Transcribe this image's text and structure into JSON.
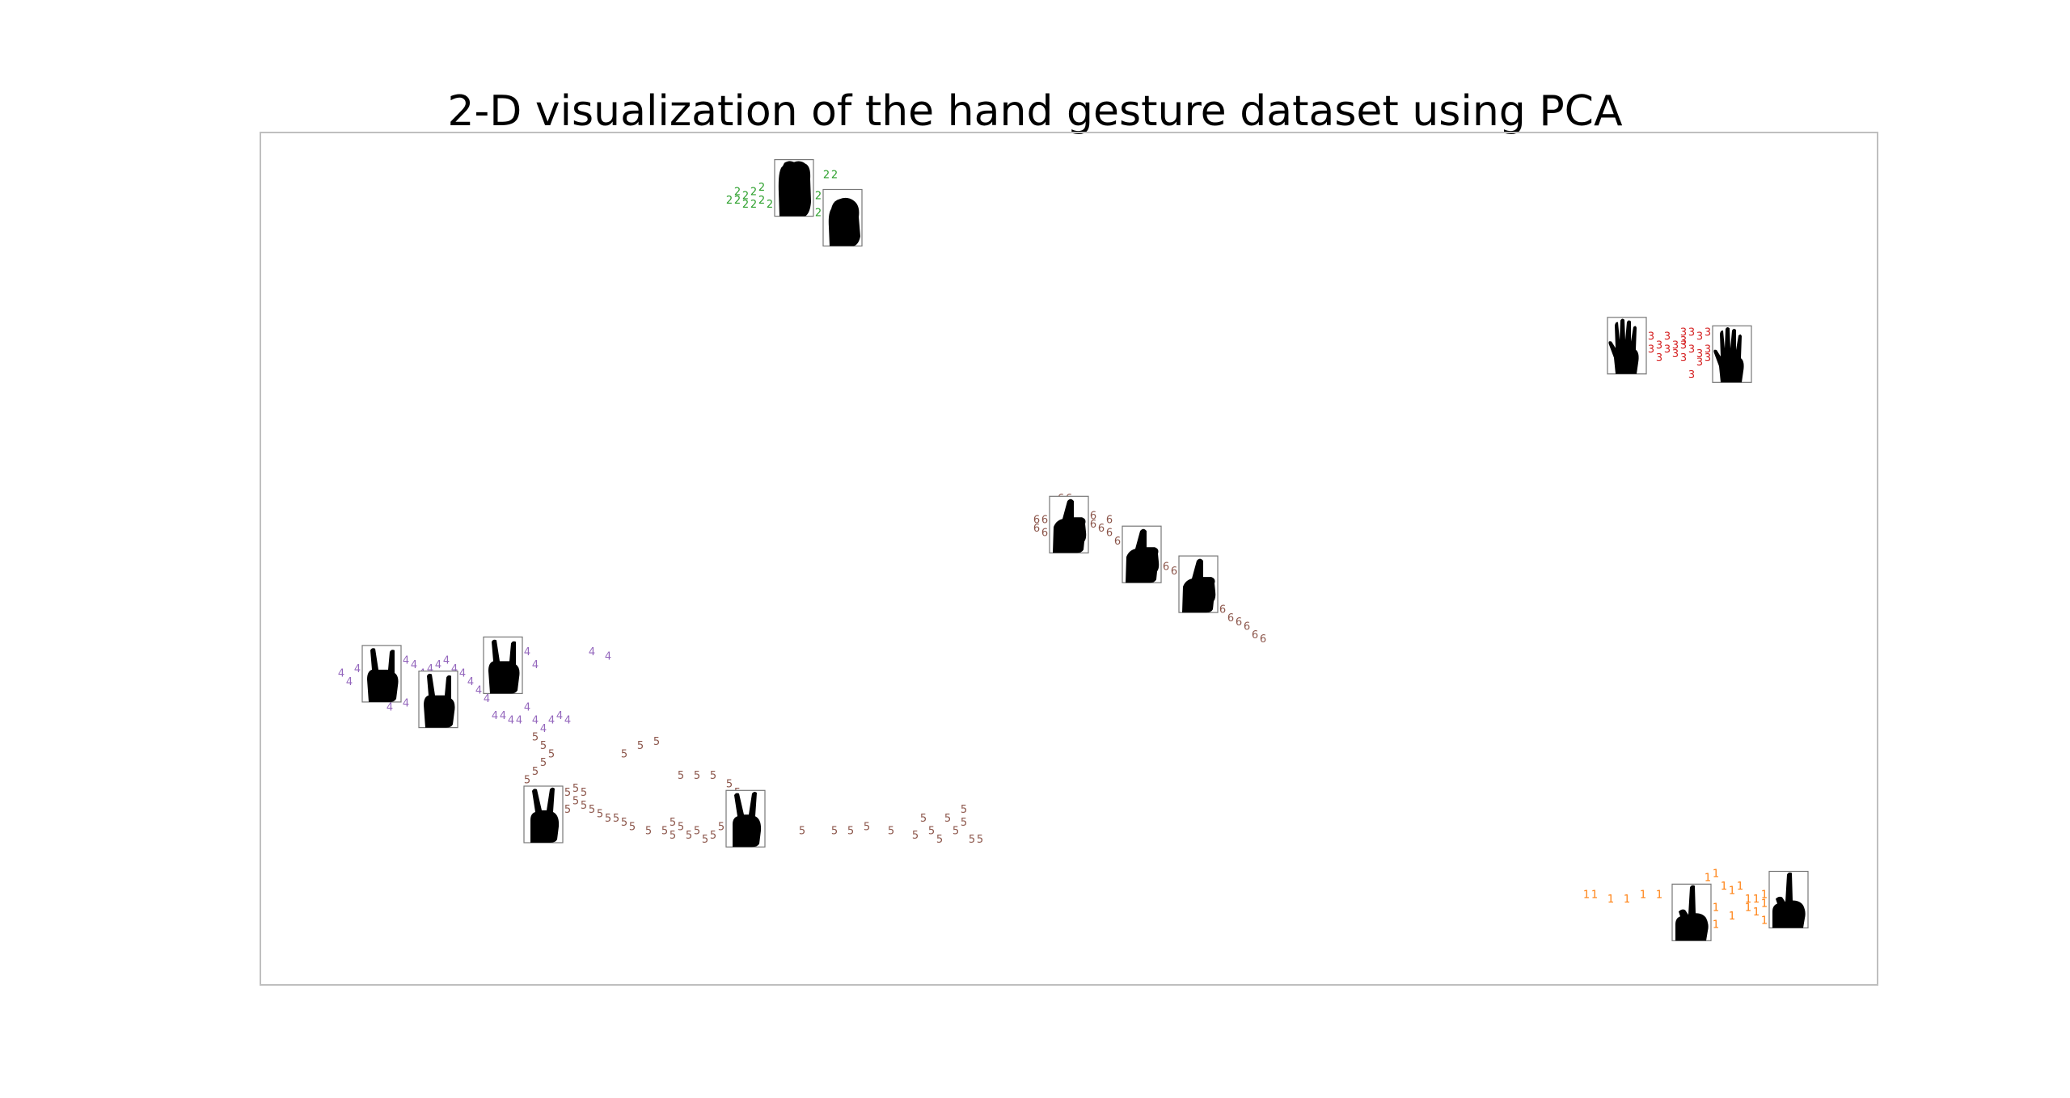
{
  "chart_data": {
    "type": "scatter",
    "title": "2-D visualization of the hand gesture dataset using PCA",
    "xlabel": "",
    "ylabel": "",
    "xlim": [
      -1.0,
      1.0
    ],
    "ylim": [
      -1.0,
      1.0
    ],
    "axes_visible": false,
    "grid": false,
    "legend": "none",
    "marker": "digit text labels (class index)",
    "colors": {
      "1": "#ff7f0e",
      "2": "#2ca02c",
      "3": "#d62728",
      "4": "#9467bd",
      "5": "#8c564b",
      "6": "#8c564b"
    },
    "series": [
      {
        "label": "1",
        "points": [
          [
            0.64,
            -0.79
          ],
          [
            0.65,
            -0.79
          ],
          [
            0.67,
            -0.8
          ],
          [
            0.69,
            -0.8
          ],
          [
            0.71,
            -0.79
          ],
          [
            0.73,
            -0.79
          ],
          [
            0.75,
            -0.82
          ],
          [
            0.77,
            -0.84
          ],
          [
            0.78,
            -0.85
          ],
          [
            0.79,
            -0.86
          ],
          [
            0.8,
            -0.86
          ],
          [
            0.79,
            -0.75
          ],
          [
            0.8,
            -0.74
          ],
          [
            0.81,
            -0.77
          ],
          [
            0.82,
            -0.78
          ],
          [
            0.83,
            -0.77
          ],
          [
            0.84,
            -0.8
          ],
          [
            0.85,
            -0.8
          ],
          [
            0.86,
            -0.81
          ],
          [
            0.87,
            -0.82
          ],
          [
            0.86,
            -0.79
          ],
          [
            0.88,
            -0.8
          ],
          [
            0.89,
            -0.82
          ],
          [
            0.89,
            -0.84
          ],
          [
            0.9,
            -0.81
          ],
          [
            0.85,
            -0.83
          ],
          [
            0.84,
            -0.82
          ],
          [
            0.87,
            -0.84
          ],
          [
            0.91,
            -0.79
          ],
          [
            0.88,
            -0.78
          ],
          [
            0.82,
            -0.84
          ],
          [
            0.8,
            -0.82
          ],
          [
            0.86,
            -0.85
          ]
        ]
      },
      {
        "label": "2",
        "points": [
          [
            -0.42,
            0.84
          ],
          [
            -0.41,
            0.86
          ],
          [
            -0.4,
            0.85
          ],
          [
            -0.39,
            0.86
          ],
          [
            -0.38,
            0.84
          ],
          [
            -0.37,
            0.83
          ],
          [
            -0.39,
            0.83
          ],
          [
            -0.4,
            0.83
          ],
          [
            -0.36,
            0.84
          ],
          [
            -0.35,
            0.83
          ],
          [
            -0.34,
            0.82
          ],
          [
            -0.33,
            0.83
          ],
          [
            -0.32,
            0.82
          ],
          [
            -0.31,
            0.81
          ],
          [
            -0.3,
            0.8
          ],
          [
            -0.31,
            0.85
          ],
          [
            -0.3,
            0.84
          ],
          [
            -0.29,
            0.83
          ],
          [
            -0.28,
            0.82
          ],
          [
            -0.35,
            0.87
          ],
          [
            -0.32,
            0.87
          ],
          [
            -0.3,
            0.9
          ],
          [
            -0.29,
            0.9
          ],
          [
            -0.33,
            0.89
          ],
          [
            -0.38,
            0.87
          ],
          [
            -0.41,
            0.84
          ],
          [
            -0.36,
            0.81
          ],
          [
            -0.28,
            0.8
          ]
        ]
      },
      {
        "label": "3",
        "points": [
          [
            0.68,
            0.52
          ],
          [
            0.69,
            0.48
          ],
          [
            0.71,
            0.48
          ],
          [
            0.72,
            0.49
          ],
          [
            0.73,
            0.5
          ],
          [
            0.74,
            0.49
          ],
          [
            0.75,
            0.5
          ],
          [
            0.76,
            0.5
          ],
          [
            0.77,
            0.49
          ],
          [
            0.78,
            0.48
          ],
          [
            0.79,
            0.49
          ],
          [
            0.8,
            0.5
          ],
          [
            0.76,
            0.53
          ],
          [
            0.77,
            0.53
          ],
          [
            0.78,
            0.52
          ],
          [
            0.79,
            0.53
          ],
          [
            0.8,
            0.53
          ],
          [
            0.81,
            0.51
          ],
          [
            0.82,
            0.52
          ],
          [
            0.75,
            0.48
          ],
          [
            0.76,
            0.51
          ],
          [
            0.74,
            0.52
          ],
          [
            0.72,
            0.52
          ],
          [
            0.7,
            0.49
          ],
          [
            0.79,
            0.47
          ],
          [
            0.78,
            0.46
          ],
          [
            0.76,
            0.47
          ],
          [
            0.77,
            0.43
          ],
          [
            0.71,
            0.53
          ],
          [
            0.73,
            0.47
          ]
        ]
      },
      {
        "label": "4",
        "points": [
          [
            -0.9,
            -0.27
          ],
          [
            -0.89,
            -0.29
          ],
          [
            -0.88,
            -0.26
          ],
          [
            -0.87,
            -0.25
          ],
          [
            -0.86,
            -0.26
          ],
          [
            -0.85,
            -0.27
          ],
          [
            -0.84,
            -0.26
          ],
          [
            -0.83,
            -0.25
          ],
          [
            -0.82,
            -0.24
          ],
          [
            -0.81,
            -0.25
          ],
          [
            -0.8,
            -0.27
          ],
          [
            -0.79,
            -0.26
          ],
          [
            -0.78,
            -0.28
          ],
          [
            -0.77,
            -0.3
          ],
          [
            -0.78,
            -0.25
          ],
          [
            -0.77,
            -0.24
          ],
          [
            -0.76,
            -0.26
          ],
          [
            -0.75,
            -0.27
          ],
          [
            -0.74,
            -0.29
          ],
          [
            -0.73,
            -0.31
          ],
          [
            -0.72,
            -0.33
          ],
          [
            -0.71,
            -0.37
          ],
          [
            -0.7,
            -0.37
          ],
          [
            -0.69,
            -0.38
          ],
          [
            -0.68,
            -0.38
          ],
          [
            -0.67,
            -0.22
          ],
          [
            -0.66,
            -0.25
          ],
          [
            -0.67,
            -0.35
          ],
          [
            -0.66,
            -0.38
          ],
          [
            -0.65,
            -0.4
          ],
          [
            -0.64,
            -0.38
          ],
          [
            -0.63,
            -0.37
          ],
          [
            -0.62,
            -0.38
          ],
          [
            -0.57,
            -0.23
          ],
          [
            -0.59,
            -0.22
          ],
          [
            -0.84,
            -0.35
          ],
          [
            -0.82,
            -0.34
          ],
          [
            -0.79,
            -0.33
          ],
          [
            -0.76,
            -0.32
          ]
        ]
      },
      {
        "label": "5",
        "points": [
          [
            -0.66,
            -0.42
          ],
          [
            -0.65,
            -0.44
          ],
          [
            -0.64,
            -0.46
          ],
          [
            -0.65,
            -0.48
          ],
          [
            -0.66,
            -0.5
          ],
          [
            -0.67,
            -0.52
          ],
          [
            -0.66,
            -0.55
          ],
          [
            -0.65,
            -0.56
          ],
          [
            -0.64,
            -0.57
          ],
          [
            -0.63,
            -0.58
          ],
          [
            -0.62,
            -0.59
          ],
          [
            -0.61,
            -0.57
          ],
          [
            -0.6,
            -0.58
          ],
          [
            -0.59,
            -0.59
          ],
          [
            -0.58,
            -0.6
          ],
          [
            -0.57,
            -0.61
          ],
          [
            -0.56,
            -0.61
          ],
          [
            -0.55,
            -0.62
          ],
          [
            -0.54,
            -0.63
          ],
          [
            -0.52,
            -0.64
          ],
          [
            -0.5,
            -0.64
          ],
          [
            -0.49,
            -0.65
          ],
          [
            -0.48,
            -0.63
          ],
          [
            -0.47,
            -0.65
          ],
          [
            -0.46,
            -0.64
          ],
          [
            -0.45,
            -0.66
          ],
          [
            -0.44,
            -0.65
          ],
          [
            -0.43,
            -0.63
          ],
          [
            -0.41,
            -0.64
          ],
          [
            -0.38,
            -0.64
          ],
          [
            -0.33,
            -0.64
          ],
          [
            -0.29,
            -0.64
          ],
          [
            -0.27,
            -0.64
          ],
          [
            -0.25,
            -0.63
          ],
          [
            -0.22,
            -0.64
          ],
          [
            -0.18,
            -0.61
          ],
          [
            -0.19,
            -0.65
          ],
          [
            -0.17,
            -0.64
          ],
          [
            -0.16,
            -0.66
          ],
          [
            -0.14,
            -0.64
          ],
          [
            -0.13,
            -0.59
          ],
          [
            -0.13,
            -0.62
          ],
          [
            -0.12,
            -0.66
          ],
          [
            -0.11,
            -0.66
          ],
          [
            -0.48,
            -0.51
          ],
          [
            -0.46,
            -0.51
          ],
          [
            -0.44,
            -0.51
          ],
          [
            -0.42,
            -0.53
          ],
          [
            -0.41,
            -0.55
          ],
          [
            -0.4,
            -0.57
          ],
          [
            -0.39,
            -0.56
          ],
          [
            -0.53,
            -0.44
          ],
          [
            -0.51,
            -0.43
          ],
          [
            -0.55,
            -0.46
          ],
          [
            -0.61,
            -0.54
          ],
          [
            -0.6,
            -0.55
          ],
          [
            -0.62,
            -0.55
          ],
          [
            -0.49,
            -0.62
          ],
          [
            -0.41,
            -0.58
          ],
          [
            -0.15,
            -0.61
          ]
        ]
      },
      {
        "label": "6",
        "points": [
          [
            -0.04,
            0.07
          ],
          [
            -0.03,
            0.09
          ],
          [
            -0.04,
            0.09
          ],
          [
            -0.02,
            0.08
          ],
          [
            -0.01,
            0.08
          ],
          [
            0.0,
            0.09
          ],
          [
            0.01,
            0.08
          ],
          [
            0.02,
            0.09
          ],
          [
            0.03,
            0.08
          ],
          [
            0.04,
            0.07
          ],
          [
            0.05,
            0.06
          ],
          [
            0.06,
            0.04
          ],
          [
            0.07,
            0.03
          ],
          [
            0.08,
            0.02
          ],
          [
            0.09,
            0.01
          ],
          [
            0.1,
            0.0
          ],
          [
            0.11,
            -0.01
          ],
          [
            0.12,
            -0.02
          ],
          [
            0.13,
            -0.03
          ],
          [
            0.14,
            -0.04
          ],
          [
            0.15,
            -0.05
          ],
          [
            0.16,
            -0.06
          ],
          [
            0.17,
            -0.08
          ],
          [
            0.18,
            -0.1
          ],
          [
            0.19,
            -0.12
          ],
          [
            0.2,
            -0.14
          ],
          [
            0.21,
            -0.15
          ],
          [
            0.22,
            -0.16
          ],
          [
            0.23,
            -0.18
          ],
          [
            0.24,
            -0.19
          ],
          [
            -0.01,
            0.14
          ],
          [
            0.0,
            0.14
          ],
          [
            0.01,
            0.13
          ],
          [
            -0.02,
            0.12
          ],
          [
            0.03,
            0.1
          ],
          [
            -0.03,
            0.06
          ],
          [
            0.0,
            0.06
          ],
          [
            0.02,
            0.06
          ],
          [
            0.05,
            0.09
          ]
        ]
      }
    ],
    "thumbnails": [
      {
        "label": "2",
        "x": -0.34,
        "y": 0.87,
        "icon": "open-hand-icon"
      },
      {
        "label": "2",
        "x": -0.28,
        "y": 0.8,
        "icon": "fist-icon"
      },
      {
        "label": "3",
        "x": 0.69,
        "y": 0.5,
        "icon": "open-palm-icon"
      },
      {
        "label": "3",
        "x": 0.82,
        "y": 0.48,
        "icon": "open-palm-icon"
      },
      {
        "label": "6",
        "x": 0.0,
        "y": 0.08,
        "icon": "thumbs-up-icon"
      },
      {
        "label": "6",
        "x": 0.09,
        "y": 0.01,
        "icon": "thumbs-up-icon"
      },
      {
        "label": "6",
        "x": 0.16,
        "y": -0.06,
        "icon": "thumbs-up-icon"
      },
      {
        "label": "4",
        "x": -0.85,
        "y": -0.27,
        "icon": "rock-horns-icon"
      },
      {
        "label": "4",
        "x": -0.7,
        "y": -0.25,
        "icon": "rock-horns-icon"
      },
      {
        "label": "4",
        "x": -0.78,
        "y": -0.33,
        "icon": "rock-horns-icon"
      },
      {
        "label": "5",
        "x": -0.65,
        "y": -0.6,
        "icon": "peace-sign-icon"
      },
      {
        "label": "5",
        "x": -0.4,
        "y": -0.61,
        "icon": "peace-sign-icon"
      },
      {
        "label": "1",
        "x": 0.77,
        "y": -0.83,
        "icon": "pointing-finger-icon"
      },
      {
        "label": "1",
        "x": 0.89,
        "y": -0.8,
        "icon": "pointing-finger-icon"
      }
    ]
  }
}
